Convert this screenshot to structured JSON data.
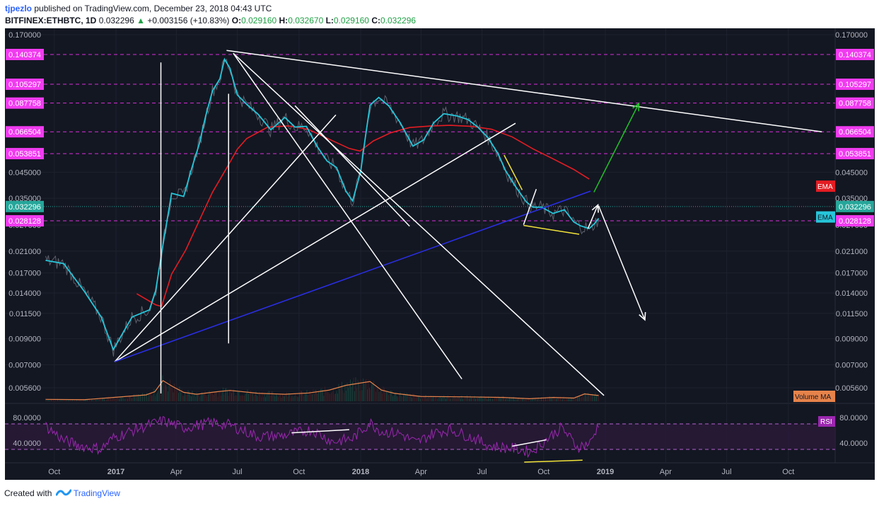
{
  "header": {
    "author": "tjpezlo",
    "published": "published on TradingView.com, December 23, 2018 04:43 UTC",
    "symbol": "BITFINEX:ETHBTC, 1D",
    "last": "0.032296",
    "change_arrow": "▲",
    "change": "+0.003156 (+10.83%)",
    "o_label": "O:",
    "o": "0.029160",
    "h_label": "H:",
    "h": "0.032670",
    "l_label": "L:",
    "l": "0.029160",
    "c_label": "C:",
    "c": "0.032296"
  },
  "footer": {
    "created": "Created with",
    "brand": "TradingView"
  },
  "colors": {
    "background": "#131722",
    "price_line": "#5d606b",
    "ema_fast": "#26c6da",
    "ema_slow": "#e51c23",
    "volume_ma": "#e6834b",
    "rsi": "#9c27b0",
    "levels": "#d62fd8",
    "trend_white": "#ffffff",
    "trend_blue": "#2a2ee8",
    "arrow_up": "#22c02a",
    "divergence": "#f2e33a"
  },
  "chart_data": [
    {
      "type": "line",
      "panel": "price",
      "scale": "log",
      "ylim": [
        0.0054,
        0.17
      ],
      "x_ticks": [
        "Oct",
        "2017",
        "Apr",
        "Jul",
        "Oct",
        "2018",
        "Apr",
        "Jul",
        "Oct",
        "2019",
        "Apr",
        "Jul",
        "Oct"
      ],
      "x_tick_bold": [
        false,
        true,
        false,
        false,
        false,
        true,
        false,
        false,
        false,
        true,
        false,
        false,
        false
      ],
      "x_tick_dates": [
        "2016-10-01",
        "2017-01-01",
        "2017-04-01",
        "2017-07-01",
        "2017-10-01",
        "2018-01-01",
        "2018-04-01",
        "2018-07-01",
        "2018-10-01",
        "2019-01-01",
        "2019-04-01",
        "2019-07-01",
        "2019-10-01"
      ],
      "y_ticks": [
        "0.170000",
        "0.045000",
        "0.035000",
        "0.027000",
        "0.021000",
        "0.017000",
        "0.014000",
        "0.011500",
        "0.009000",
        "0.007000",
        "0.005600"
      ],
      "levels": [
        {
          "label": "0.140374",
          "value": 0.140374
        },
        {
          "label": "0.105297",
          "value": 0.105297
        },
        {
          "label": "0.087758",
          "value": 0.087758
        },
        {
          "label": "0.066504",
          "value": 0.066504
        },
        {
          "label": "0.053851",
          "value": 0.053851
        },
        {
          "label": "0.028128",
          "value": 0.028128
        }
      ],
      "last_price": {
        "label": "0.032296",
        "value": 0.032296
      },
      "series": [
        {
          "name": "EMA",
          "role": "fast",
          "x": [
            "2016-09-18",
            "2016-10-15",
            "2016-11-15",
            "2016-12-10",
            "2016-12-28",
            "2017-01-25",
            "2017-02-20",
            "2017-03-01",
            "2017-03-12",
            "2017-03-25",
            "2017-04-12",
            "2017-04-25",
            "2017-05-05",
            "2017-05-15",
            "2017-05-25",
            "2017-06-05",
            "2017-06-12",
            "2017-06-20",
            "2017-07-01",
            "2017-07-16",
            "2017-08-01",
            "2017-08-20",
            "2017-09-10",
            "2017-09-25",
            "2017-10-12",
            "2017-10-28",
            "2017-11-12",
            "2017-11-26",
            "2017-12-10",
            "2017-12-20",
            "2018-01-01",
            "2018-01-08",
            "2018-01-15",
            "2018-01-28",
            "2018-02-12",
            "2018-03-01",
            "2018-03-20",
            "2018-04-05",
            "2018-04-20",
            "2018-05-05",
            "2018-05-25",
            "2018-06-10",
            "2018-06-25",
            "2018-07-10",
            "2018-07-25",
            "2018-08-05",
            "2018-08-20",
            "2018-09-05",
            "2018-09-15",
            "2018-09-28",
            "2018-10-15",
            "2018-11-01",
            "2018-11-15",
            "2018-11-25",
            "2018-12-08",
            "2018-12-16",
            "2018-12-22"
          ],
          "values": [
            0.0192,
            0.0186,
            0.0142,
            0.0111,
            0.0081,
            0.0111,
            0.0119,
            0.0142,
            0.0222,
            0.0367,
            0.0356,
            0.0477,
            0.0588,
            0.0778,
            0.0988,
            0.111,
            0.134,
            0.123,
            0.095,
            0.0862,
            0.0788,
            0.0678,
            0.0764,
            0.0696,
            0.0701,
            0.0578,
            0.0501,
            0.0471,
            0.0375,
            0.0341,
            0.0452,
            0.063,
            0.086,
            0.0927,
            0.0854,
            0.0726,
            0.0579,
            0.0615,
            0.0725,
            0.0792,
            0.0775,
            0.0749,
            0.0695,
            0.0628,
            0.0538,
            0.0458,
            0.0392,
            0.0338,
            0.0321,
            0.0321,
            0.0302,
            0.0313,
            0.0278,
            0.0268,
            0.0261,
            0.0274,
            0.0288
          ]
        },
        {
          "name": "EMA",
          "role": "slow",
          "x": [
            "2017-02-01",
            "2017-03-01",
            "2017-03-10",
            "2017-03-25",
            "2017-04-15",
            "2017-05-05",
            "2017-05-25",
            "2017-06-15",
            "2017-07-01",
            "2017-07-15",
            "2017-08-15",
            "2017-09-15",
            "2017-10-15",
            "2017-11-15",
            "2017-12-15",
            "2017-12-31",
            "2018-01-20",
            "2018-02-15",
            "2018-03-15",
            "2018-04-15",
            "2018-05-15",
            "2018-06-15",
            "2018-07-15",
            "2018-08-15",
            "2018-09-15",
            "2018-10-15",
            "2018-11-15",
            "2018-12-08"
          ],
          "values": [
            0.0139,
            0.0125,
            0.0123,
            0.0168,
            0.0212,
            0.0281,
            0.0371,
            0.0468,
            0.0562,
            0.0623,
            0.0695,
            0.0704,
            0.0681,
            0.0619,
            0.0566,
            0.0552,
            0.0609,
            0.0659,
            0.0693,
            0.0703,
            0.0708,
            0.0701,
            0.0682,
            0.0633,
            0.0564,
            0.0512,
            0.0462,
            0.0421
          ]
        }
      ],
      "legend": [
        "EMA",
        "EMA"
      ],
      "annotations": [
        {
          "kind": "trend",
          "color": "white",
          "x": [
            "2017-06-15",
            "2019-11-20"
          ],
          "y": [
            0.146,
            0.0665
          ]
        },
        {
          "kind": "trend",
          "color": "white",
          "x": [
            "2016-12-30",
            "2017-11-25"
          ],
          "y": [
            0.0072,
            0.0783
          ]
        },
        {
          "kind": "trend",
          "color": "white",
          "x": [
            "2016-12-30",
            "2018-08-20"
          ],
          "y": [
            0.0072,
            0.0722
          ]
        },
        {
          "kind": "trend",
          "color": "blue",
          "x": [
            "2016-12-30",
            "2018-12-10"
          ],
          "y": [
            0.0072,
            0.0375
          ]
        },
        {
          "kind": "trend",
          "color": "white",
          "x": [
            "2017-06-25",
            "2018-06-01"
          ],
          "y": [
            0.142,
            0.0061
          ]
        },
        {
          "kind": "trend",
          "color": "white",
          "x": [
            "2017-06-25",
            "2018-12-30"
          ],
          "y": [
            0.142,
            0.0052
          ]
        },
        {
          "kind": "trend",
          "color": "white",
          "x": [
            "2017-09-25",
            "2018-03-15"
          ],
          "y": [
            0.0856,
            0.0267
          ]
        },
        {
          "kind": "trend",
          "color": "white",
          "x": [
            "2017-03-09",
            "2017-03-09"
          ],
          "y": [
            0.0053,
            0.13
          ]
        },
        {
          "kind": "trend",
          "color": "white",
          "x": [
            "2017-06-18",
            "2017-06-18"
          ],
          "y": [
            0.0086,
            0.096
          ]
        },
        {
          "kind": "trend",
          "color": "yellow",
          "x": [
            "2018-08-03",
            "2018-08-30"
          ],
          "y": [
            0.0531,
            0.0379
          ]
        },
        {
          "kind": "trend",
          "color": "yellow",
          "x": [
            "2018-09-01",
            "2018-11-23"
          ],
          "y": [
            0.0269,
            0.0247
          ]
        },
        {
          "kind": "trend",
          "color": "white",
          "x": [
            "2018-09-01",
            "2018-09-20"
          ],
          "y": [
            0.0271,
            0.0382
          ]
        },
        {
          "kind": "arrow",
          "color": "green",
          "x": [
            "2018-12-15",
            "2019-02-20"
          ],
          "y": [
            0.0371,
            0.0874
          ]
        },
        {
          "kind": "arrow",
          "color": "white",
          "x": [
            "2018-12-22",
            "2019-03-01"
          ],
          "y": [
            0.0325,
            0.0108
          ]
        },
        {
          "kind": "arrow",
          "color": "white",
          "x": [
            "2018-12-06",
            "2018-12-21"
          ],
          "y": [
            0.0261,
            0.0328
          ]
        }
      ]
    },
    {
      "type": "area",
      "panel": "volume",
      "series": [
        {
          "name": "Volume MA",
          "x": [
            "2016-09-18",
            "2016-11-15",
            "2016-12-28",
            "2017-02-15",
            "2017-02-28",
            "2017-03-12",
            "2017-03-25",
            "2017-04-12",
            "2017-05-01",
            "2017-06-01",
            "2017-06-20",
            "2017-08-01",
            "2017-09-10",
            "2017-10-15",
            "2017-11-15",
            "2017-12-10",
            "2018-01-15",
            "2018-02-01",
            "2018-02-20",
            "2018-04-01",
            "2018-06-01",
            "2018-08-01",
            "2018-09-10",
            "2018-10-15",
            "2018-11-15",
            "2018-12-01",
            "2018-12-22"
          ],
          "values": [
            6,
            5,
            12,
            20,
            30,
            65,
            48,
            28,
            22,
            30,
            34,
            25,
            22,
            26,
            35,
            50,
            62,
            35,
            25,
            15,
            14,
            12,
            8,
            12,
            10,
            23,
            18
          ]
        }
      ],
      "legend": [
        "Volume MA"
      ]
    },
    {
      "type": "line",
      "panel": "rsi",
      "ylim": [
        0,
        100
      ],
      "y_ticks": [
        "80.0000",
        "40.0000"
      ],
      "bands": [
        30,
        70
      ],
      "series": [
        {
          "name": "RSI",
          "x": [
            "2016-09-18",
            "2016-10-15",
            "2016-11-15",
            "2016-12-10",
            "2016-12-28",
            "2017-02-01",
            "2017-03-12",
            "2017-04-12",
            "2017-05-25",
            "2017-06-20",
            "2017-08-01",
            "2017-09-10",
            "2017-10-20",
            "2017-11-20",
            "2017-12-20",
            "2018-01-15",
            "2018-02-01",
            "2018-03-01",
            "2018-03-25",
            "2018-04-20",
            "2018-05-15",
            "2018-06-15",
            "2018-07-15",
            "2018-08-20",
            "2018-09-12",
            "2018-10-10",
            "2018-10-28",
            "2018-11-20",
            "2018-12-10",
            "2018-12-22"
          ],
          "values": [
            67,
            44,
            34,
            31,
            48,
            62,
            75,
            64,
            72,
            68,
            50,
            52,
            61,
            42,
            47,
            72,
            58,
            55,
            40,
            56,
            61,
            49,
            35,
            31,
            26,
            50,
            64,
            34,
            40,
            70
          ]
        }
      ],
      "legend": [
        "RSI"
      ],
      "annotations": [
        {
          "kind": "trend",
          "color": "white",
          "x": [
            "2017-09-20",
            "2017-12-15"
          ],
          "y": [
            56,
            61
          ]
        },
        {
          "kind": "trend",
          "color": "white",
          "x": [
            "2018-08-15",
            "2018-10-05"
          ],
          "y": [
            35,
            45
          ]
        },
        {
          "kind": "trend",
          "color": "yellow",
          "x": [
            "2018-09-02",
            "2018-11-28"
          ],
          "y": [
            10,
            13
          ]
        }
      ]
    }
  ]
}
